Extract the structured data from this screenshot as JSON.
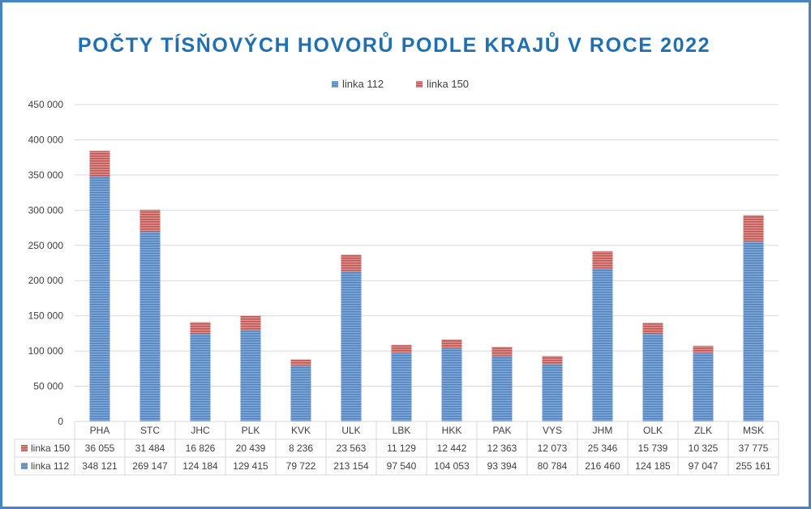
{
  "colors": {
    "frame": "#4a83c2",
    "title": "#1f6fb4",
    "linka112": "#4f81bd",
    "linka150": "#c0504d",
    "grid": "#d9d9d9",
    "text": "#404040"
  },
  "chart_data": {
    "type": "bar",
    "stacked": true,
    "title": "POČTY TÍSŇOVÝCH HOVORŮ PODLE KRAJŮ V ROCE 2022",
    "xlabel": "",
    "ylabel": "",
    "ylim": [
      0,
      450000
    ],
    "yticks": [
      0,
      50000,
      100000,
      150000,
      200000,
      250000,
      300000,
      350000,
      400000,
      450000
    ],
    "ytick_labels": [
      "0",
      "50 000",
      "100 000",
      "150 000",
      "200 000",
      "250 000",
      "300 000",
      "350 000",
      "400 000",
      "450 000"
    ],
    "grid": true,
    "legend_position": "top-center",
    "categories": [
      "PHA",
      "STC",
      "JHC",
      "PLK",
      "KVK",
      "ULK",
      "LBK",
      "HKK",
      "PAK",
      "VYS",
      "JHM",
      "OLK",
      "ZLK",
      "MSK"
    ],
    "series": [
      {
        "name": "linka 112",
        "color": "#4f81bd",
        "values": [
          348121,
          269147,
          124184,
          129415,
          79722,
          213154,
          97540,
          104053,
          93394,
          80784,
          216460,
          124185,
          97047,
          255161
        ],
        "labels": [
          "348 121",
          "269 147",
          "124 184",
          "129 415",
          "79 722",
          "213 154",
          "97 540",
          "104 053",
          "93 394",
          "80 784",
          "216 460",
          "124 185",
          "97 047",
          "255 161"
        ]
      },
      {
        "name": "linka 150",
        "color": "#c0504d",
        "values": [
          36055,
          31484,
          16826,
          20439,
          8236,
          23563,
          11129,
          12442,
          12363,
          12073,
          25346,
          15739,
          10325,
          37775
        ],
        "labels": [
          "36 055",
          "31 484",
          "16 826",
          "20 439",
          "8 236",
          "23 563",
          "11 129",
          "12 442",
          "12 363",
          "12 073",
          "25 346",
          "15 739",
          "10 325",
          "37 775"
        ]
      }
    ],
    "data_table": {
      "row_order": [
        "linka 150",
        "linka 112"
      ]
    }
  }
}
